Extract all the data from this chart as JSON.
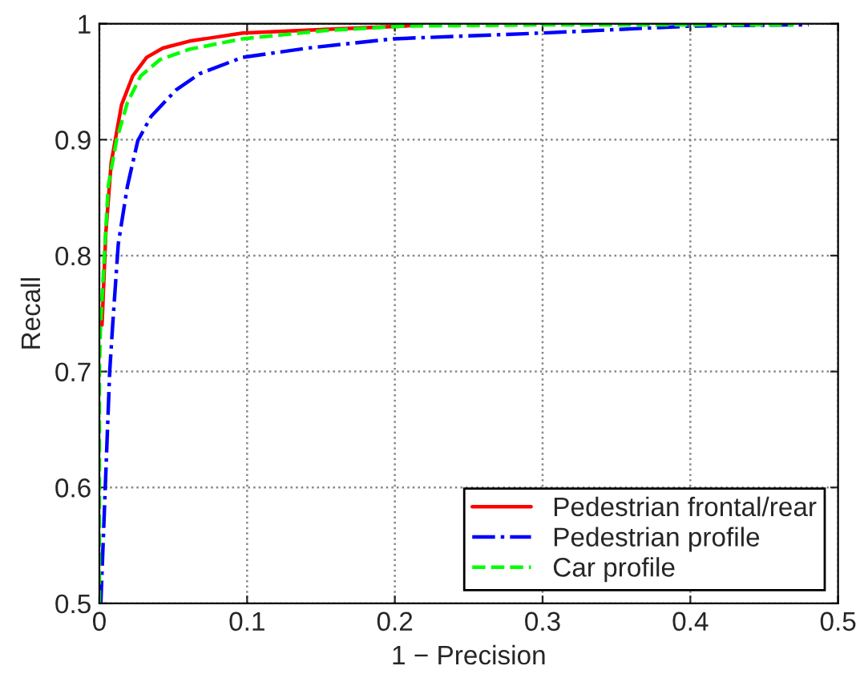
{
  "chart_data": {
    "type": "line",
    "xlabel": "1 − Precision",
    "ylabel": "Recall",
    "xlim": [
      0,
      0.5
    ],
    "ylim": [
      0.5,
      1
    ],
    "xticks": [
      0,
      0.1,
      0.2,
      0.3,
      0.4,
      0.5
    ],
    "yticks": [
      0.5,
      0.6,
      0.7,
      0.8,
      0.9,
      1
    ],
    "grid": true,
    "legend": "bottom right",
    "series": [
      {
        "name": "Pedestrian frontal/rear",
        "color": "#ff0000",
        "line_style": "solid",
        "x": [
          0.0018,
          0.0044,
          0.008,
          0.015,
          0.0226,
          0.032,
          0.043,
          0.061,
          0.097,
          0.152,
          0.207,
          0.214
        ],
        "values": [
          0.74,
          0.82,
          0.88,
          0.93,
          0.955,
          0.971,
          0.979,
          0.985,
          0.992,
          0.995,
          0.998,
          0.999
        ]
      },
      {
        "name": "Pedestrian profile",
        "color": "#0000ff",
        "line_style": "dashdot",
        "x": [
          0.001,
          0.007,
          0.009,
          0.0128,
          0.019,
          0.026,
          0.035,
          0.052,
          0.068,
          0.097,
          0.141,
          0.199,
          0.3,
          0.401,
          0.467,
          0.48
        ],
        "values": [
          0.5,
          0.7,
          0.74,
          0.81,
          0.86,
          0.899,
          0.92,
          0.943,
          0.957,
          0.971,
          0.979,
          0.987,
          0.992,
          0.998,
          0.999,
          0.999
        ]
      },
      {
        "name": "Car profile",
        "color": "#00ff00",
        "line_style": "dashed",
        "x": [
          0.0,
          0.0,
          0.0008,
          0.006,
          0.0117,
          0.019,
          0.028,
          0.041,
          0.061,
          0.097,
          0.152,
          0.207,
          0.3,
          0.47
        ],
        "values": [
          0.5,
          0.7,
          0.74,
          0.86,
          0.9,
          0.932,
          0.955,
          0.969,
          0.978,
          0.987,
          0.994,
          0.998,
          0.999,
          0.999
        ]
      }
    ]
  }
}
